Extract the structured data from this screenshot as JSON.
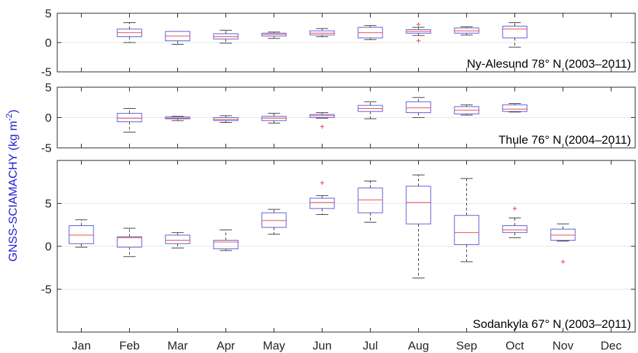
{
  "colors": {
    "box": "#5a5ad6",
    "median": "#e8474a",
    "whisker": "#404040",
    "outlier": "#e8474a",
    "ylabel": "#1f1fd6",
    "grid": "#e6e6e6",
    "axis": "#262626"
  },
  "figure": {
    "ylabel": "GNSS-SCIAMACHY (kg m",
    "ylabel_sup": "-2",
    "ylabel_close": ")"
  },
  "chart_data": [
    {
      "type": "box",
      "label": "Ny-Alesund 78° N  (2003–2011)",
      "ylim": [
        -5,
        5
      ],
      "yticks": [
        -5,
        0,
        5
      ],
      "grid": "horizontal",
      "categories": [
        "Jan",
        "Feb",
        "Mar",
        "Apr",
        "May",
        "Jun",
        "Jul",
        "Aug",
        "Sep",
        "Oct",
        "Nov",
        "Dec"
      ],
      "boxes": [
        null,
        {
          "whislo": 0.0,
          "q1": 1.0,
          "med": 1.7,
          "q3": 2.3,
          "whishi": 3.4,
          "fliers": []
        },
        {
          "whislo": -0.3,
          "q1": 0.3,
          "med": 1.1,
          "q3": 1.9,
          "whishi": 1.9,
          "fliers": []
        },
        {
          "whislo": -0.1,
          "q1": 0.6,
          "med": 1.0,
          "q3": 1.5,
          "whishi": 2.1,
          "fliers": []
        },
        {
          "whislo": 0.7,
          "q1": 1.1,
          "med": 1.4,
          "q3": 1.6,
          "whishi": 1.8,
          "fliers": []
        },
        {
          "whislo": 1.0,
          "q1": 1.3,
          "med": 1.6,
          "q3": 2.0,
          "whishi": 2.4,
          "fliers": []
        },
        {
          "whislo": 0.5,
          "q1": 0.8,
          "med": 1.7,
          "q3": 2.6,
          "whishi": 2.9,
          "fliers": []
        },
        {
          "whislo": 1.2,
          "q1": 1.6,
          "med": 1.9,
          "q3": 2.2,
          "whishi": 2.6,
          "fliers": [
            0.3,
            3.1
          ]
        },
        {
          "whislo": 1.3,
          "q1": 1.6,
          "med": 2.0,
          "q3": 2.5,
          "whishi": 2.7,
          "fliers": []
        },
        {
          "whislo": -0.8,
          "q1": 0.8,
          "med": 2.3,
          "q3": 2.8,
          "whishi": 3.4,
          "fliers": []
        },
        null,
        null
      ]
    },
    {
      "type": "box",
      "label": "Thule 76° N  (2004–2011)",
      "ylim": [
        -5,
        5
      ],
      "yticks": [
        -5,
        0,
        5
      ],
      "grid": "horizontal",
      "categories": [
        "Jan",
        "Feb",
        "Mar",
        "Apr",
        "May",
        "Jun",
        "Jul",
        "Aug",
        "Sep",
        "Oct",
        "Nov",
        "Dec"
      ],
      "boxes": [
        null,
        {
          "whislo": -2.4,
          "q1": -0.7,
          "med": -0.1,
          "q3": 0.7,
          "whishi": 1.5,
          "fliers": []
        },
        {
          "whislo": -0.5,
          "q1": -0.2,
          "med": -0.1,
          "q3": 0.1,
          "whishi": 0.2,
          "fliers": []
        },
        {
          "whislo": -0.8,
          "q1": -0.5,
          "med": -0.3,
          "q3": 0.0,
          "whishi": 0.3,
          "fliers": []
        },
        {
          "whislo": -0.9,
          "q1": -0.5,
          "med": -0.1,
          "q3": 0.2,
          "whishi": 0.7,
          "fliers": []
        },
        {
          "whislo": -0.1,
          "q1": 0.0,
          "med": 0.3,
          "q3": 0.5,
          "whishi": 0.8,
          "fliers": [
            -1.5
          ]
        },
        {
          "whislo": -0.2,
          "q1": 1.0,
          "med": 1.5,
          "q3": 2.0,
          "whishi": 2.6,
          "fliers": []
        },
        {
          "whislo": 0.0,
          "q1": 0.8,
          "med": 1.6,
          "q3": 2.6,
          "whishi": 3.3,
          "fliers": []
        },
        {
          "whislo": 0.4,
          "q1": 0.6,
          "med": 1.2,
          "q3": 1.8,
          "whishi": 2.1,
          "fliers": []
        },
        {
          "whislo": 0.9,
          "q1": 1.0,
          "med": 1.4,
          "q3": 2.1,
          "whishi": 2.3,
          "fliers": []
        },
        null,
        null
      ]
    },
    {
      "type": "box",
      "label": "Sodankyla 67° N  (2003–2011)",
      "ylim": [
        -10,
        10
      ],
      "yticks": [
        -5,
        0,
        5
      ],
      "grid": "horizontal",
      "categories": [
        "Jan",
        "Feb",
        "Mar",
        "Apr",
        "May",
        "Jun",
        "Jul",
        "Aug",
        "Sep",
        "Oct",
        "Nov",
        "Dec"
      ],
      "boxes": [
        {
          "whislo": -0.1,
          "q1": 0.3,
          "med": 1.3,
          "q3": 2.4,
          "whishi": 3.1,
          "fliers": []
        },
        {
          "whislo": -1.2,
          "q1": -0.1,
          "med": 1.0,
          "q3": 1.1,
          "whishi": 2.1,
          "fliers": []
        },
        {
          "whislo": -0.2,
          "q1": 0.3,
          "med": 0.7,
          "q3": 1.3,
          "whishi": 1.6,
          "fliers": []
        },
        {
          "whislo": -0.5,
          "q1": -0.3,
          "med": 0.5,
          "q3": 0.7,
          "whishi": 1.9,
          "fliers": []
        },
        {
          "whislo": 1.4,
          "q1": 2.2,
          "med": 3.0,
          "q3": 3.9,
          "whishi": 4.3,
          "fliers": []
        },
        {
          "whislo": 3.7,
          "q1": 4.4,
          "med": 5.1,
          "q3": 5.6,
          "whishi": 5.9,
          "fliers": [
            7.4
          ]
        },
        {
          "whislo": 2.8,
          "q1": 3.9,
          "med": 5.4,
          "q3": 6.8,
          "whishi": 7.6,
          "fliers": []
        },
        {
          "whislo": -3.7,
          "q1": 2.6,
          "med": 5.1,
          "q3": 7.0,
          "whishi": 8.3,
          "fliers": []
        },
        {
          "whislo": -1.8,
          "q1": 0.2,
          "med": 1.6,
          "q3": 3.6,
          "whishi": 7.9,
          "fliers": []
        },
        {
          "whislo": 1.0,
          "q1": 1.6,
          "med": 1.9,
          "q3": 2.4,
          "whishi": 3.3,
          "fliers": [
            4.4
          ]
        },
        {
          "whislo": 0.6,
          "q1": 0.7,
          "med": 1.3,
          "q3": 2.0,
          "whishi": 2.6,
          "fliers": [
            -1.8
          ]
        },
        null
      ]
    }
  ],
  "xticks": [
    "Jan",
    "Feb",
    "Mar",
    "Apr",
    "May",
    "Jun",
    "Jul",
    "Aug",
    "Sep",
    "Oct",
    "Nov",
    "Dec"
  ]
}
